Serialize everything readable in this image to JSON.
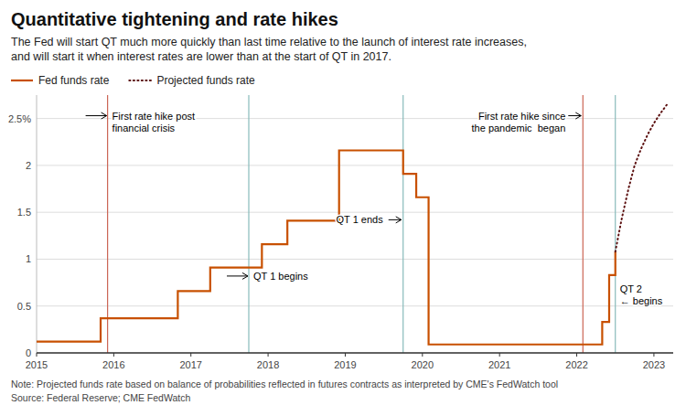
{
  "chart_data": {
    "type": "line",
    "title": "Quantitative tightening and rate hikes",
    "subtitle": "The Fed will start QT much more quickly than last time relative to the launch of interest rate increases,\nand will start it when interest rates are lower than at the start of QT in 2017.",
    "note": "Note: Projected funds rate based on balance of probabilities reflected in futures contracts as interpreted by CME's FedWatch tool\nSource: Federal Reserve; CME FedWatch",
    "xlim": [
      2015.0,
      2023.25
    ],
    "xticks": [
      2015,
      2016,
      2017,
      2018,
      2019,
      2020,
      2021,
      2022,
      2023
    ],
    "ylim": [
      0,
      2.75
    ],
    "yticks": [
      0,
      0.5,
      1,
      1.5,
      2,
      {
        "value": 2.5,
        "label": "2.5%"
      }
    ],
    "grid": "y",
    "legend": "top left",
    "series": [
      {
        "name": "Fed funds rate",
        "color": "#C85000",
        "line_style": "solid",
        "x": [
          2015.0,
          2015.83,
          2015.83,
          2015.83,
          2016.0,
          2016.83,
          2016.83,
          2016.83,
          2017.0,
          2017.25,
          2017.25,
          2017.25,
          2017.5,
          2017.5,
          2017.92,
          2017.92,
          2018.0,
          2018.25,
          2018.25,
          2018.25,
          2018.5,
          2018.5,
          2018.92,
          2018.92,
          2019.0,
          2019.42,
          2019.42,
          2019.58,
          2019.58,
          2019.75,
          2019.75,
          2019.75,
          2019.92,
          2019.92,
          2020.0,
          2020.08,
          2020.08,
          2020.08,
          2020.17,
          2021.0,
          2021.0,
          2022.0,
          2022.0,
          2022.17,
          2022.17,
          2022.17,
          2022.33,
          2022.33,
          2022.42,
          2022.42,
          2022.5,
          2022.5
        ],
        "values": [
          0.12,
          0.12,
          0.12,
          0.37,
          0.37,
          0.37,
          0.37,
          0.66,
          0.66,
          0.66,
          0.66,
          0.91,
          0.91,
          0.91,
          0.91,
          1.16,
          1.16,
          1.16,
          1.16,
          1.41,
          1.41,
          1.41,
          1.41,
          2.16,
          2.16,
          2.16,
          2.16,
          2.16,
          2.16,
          2.16,
          2.16,
          1.91,
          1.91,
          1.66,
          1.66,
          1.66,
          1.66,
          0.09,
          0.09,
          0.09,
          0.09,
          0.09,
          0.09,
          0.09,
          0.09,
          0.09,
          0.09,
          0.33,
          0.33,
          0.83,
          0.83,
          1.08
        ]
      },
      {
        "name": "Projected funds rate",
        "color": "#5C1010",
        "line_style": "dotted",
        "x": [
          2022.5,
          2022.58,
          2022.67,
          2022.75,
          2022.83,
          2022.92,
          2023.0,
          2023.08,
          2023.17
        ],
        "values": [
          1.08,
          1.42,
          1.75,
          2.0,
          2.17,
          2.33,
          2.45,
          2.55,
          2.65
        ]
      }
    ],
    "vlines": [
      {
        "x": 2015.92,
        "color": "#CC6655"
      },
      {
        "x": 2017.75,
        "color": "#88BBBB"
      },
      {
        "x": 2019.75,
        "color": "#88BBBB"
      },
      {
        "x": 2022.08,
        "color": "#CC6655"
      },
      {
        "x": 2022.5,
        "color": "#88BBBB"
      }
    ],
    "annotations": [
      {
        "text": "First rate hike post\nfinancial crisis",
        "x": 2015.92,
        "y": 2.53,
        "side": "right",
        "arrow": true
      },
      {
        "text": "QT 1 begins",
        "x": 2017.75,
        "y": 0.82,
        "side": "right",
        "arrow": true
      },
      {
        "text": "QT 1 ends ",
        "x": 2019.75,
        "y": 1.42,
        "side": "left",
        "arrow": true
      },
      {
        "text": "First rate hike since\nthe pandemic  began",
        "x": 2022.08,
        "y": 2.53,
        "side": "left",
        "arrow": true
      },
      {
        "text": "QT 2\n← begins",
        "x": 2022.5,
        "y": 0.68,
        "side": "right",
        "arrow": false
      }
    ]
  }
}
